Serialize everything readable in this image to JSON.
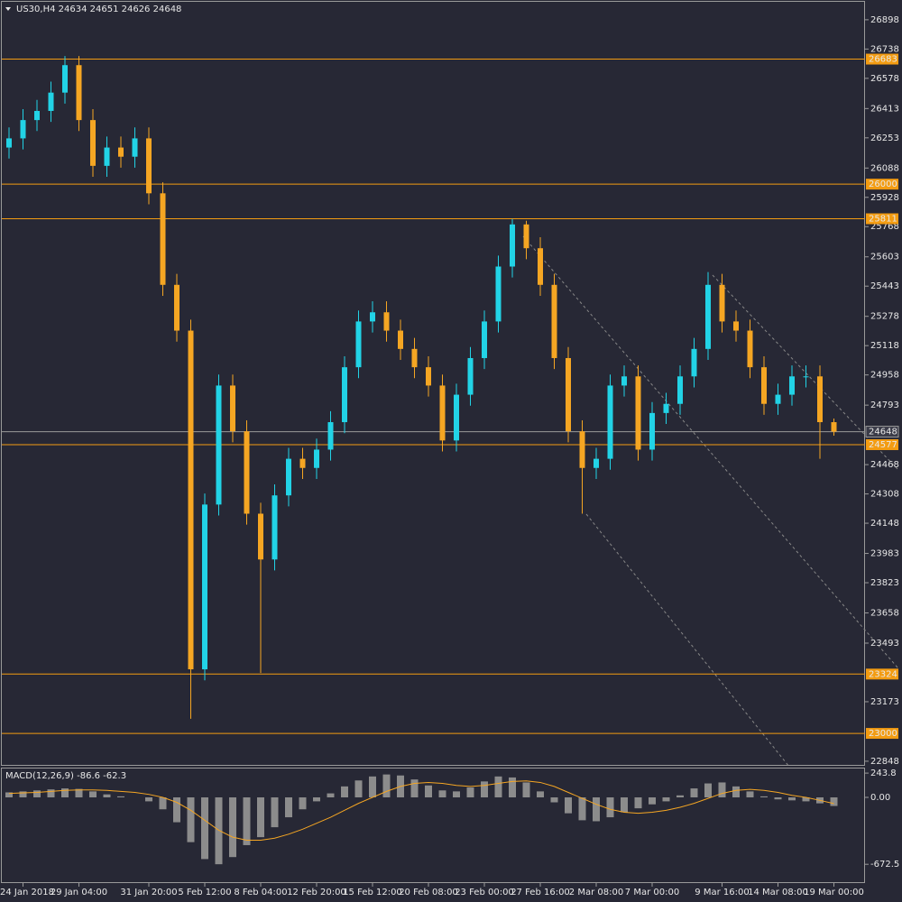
{
  "chart_data": [
    {
      "type": "candlestick",
      "title": "US30,H4  24634 24651 24626 24648",
      "categories": [
        null,
        "24 Jan 2018",
        null,
        null,
        null,
        "29 Jan 04:00",
        null,
        null,
        null,
        null,
        "31 Jan 20:00",
        null,
        null,
        null,
        "5 Feb 12:00",
        null,
        null,
        null,
        "8 Feb 04:00",
        null,
        null,
        null,
        "12 Feb 20:00",
        null,
        null,
        null,
        "15 Feb 12:00",
        null,
        null,
        null,
        "20 Feb 08:00",
        null,
        null,
        null,
        "23 Feb 00:00",
        null,
        null,
        null,
        "27 Feb 16:00",
        null,
        null,
        null,
        "2 Mar 08:00",
        null,
        null,
        null,
        "7 Mar 00:00",
        null,
        null,
        null,
        null,
        "9 Mar 16:00",
        null,
        null,
        null,
        "14 Mar 08:00",
        null,
        null,
        null,
        "19 Mar 00:00"
      ],
      "open": [
        26200,
        26250,
        26350,
        26400,
        26500,
        26650,
        26350,
        26100,
        26200,
        26150,
        26250,
        25950,
        25450,
        25200,
        23350,
        24250,
        24900,
        24650,
        24200,
        23950,
        24300,
        24500,
        24450,
        24550,
        24700,
        25000,
        25250,
        25300,
        25200,
        25100,
        25000,
        24900,
        24600,
        24850,
        25050,
        25250,
        25550,
        25780,
        25650,
        25450,
        25050,
        24650,
        24450,
        24500,
        24900,
        24950,
        24550,
        24750,
        24800,
        24950,
        25100,
        25450,
        25250,
        25200,
        25000,
        24800,
        24850,
        24950,
        24950,
        24700
      ],
      "high": [
        26310,
        26410,
        26460,
        26560,
        26700,
        26700,
        26410,
        26260,
        26260,
        26310,
        26310,
        26010,
        25510,
        25260,
        24310,
        24960,
        24960,
        24710,
        24260,
        24360,
        24560,
        24560,
        24610,
        24760,
        25060,
        25310,
        25360,
        25360,
        25260,
        25160,
        25060,
        24960,
        24910,
        25110,
        25310,
        25610,
        25810,
        25800,
        25710,
        25510,
        25110,
        24710,
        24560,
        24960,
        25010,
        25010,
        24810,
        24860,
        25010,
        25160,
        25520,
        25510,
        25310,
        25260,
        25060,
        24910,
        25010,
        25010,
        25010,
        24720
      ],
      "low": [
        26140,
        26190,
        26290,
        26340,
        26440,
        26290,
        26040,
        26040,
        26090,
        26090,
        25890,
        25390,
        25140,
        23080,
        23290,
        24190,
        24590,
        24140,
        23330,
        23890,
        24240,
        24390,
        24390,
        24490,
        24640,
        24940,
        25190,
        25140,
        25040,
        24940,
        24840,
        24540,
        24540,
        24790,
        24990,
        25190,
        25490,
        25590,
        25390,
        24990,
        24590,
        24200,
        24390,
        24440,
        24840,
        24490,
        24490,
        24690,
        24740,
        24890,
        25040,
        25190,
        25140,
        24940,
        24740,
        24740,
        24790,
        24890,
        24500,
        24626
      ],
      "close": [
        26250,
        26350,
        26400,
        26500,
        26650,
        26350,
        26100,
        26200,
        26150,
        26250,
        25950,
        25450,
        25200,
        23350,
        24250,
        24900,
        24650,
        24200,
        23950,
        24300,
        24500,
        24450,
        24550,
        24700,
        25000,
        25250,
        25300,
        25200,
        25100,
        25000,
        24900,
        24600,
        24850,
        25050,
        25250,
        25550,
        25780,
        25650,
        25450,
        25050,
        24650,
        24450,
        24500,
        24900,
        24950,
        24550,
        24750,
        24800,
        24950,
        25100,
        25450,
        25250,
        25200,
        25000,
        24800,
        24850,
        24950,
        24950,
        24700,
        24648
      ],
      "up_color": "#22d3e6",
      "down_color": "#f5a623",
      "ylim": [
        22823,
        26996
      ],
      "yticks": [
        26898,
        26738,
        26578,
        26413,
        26253,
        26088,
        25928,
        25768,
        25603,
        25443,
        25278,
        25118,
        24958,
        24793,
        24468,
        24308,
        24148,
        23983,
        23823,
        23658,
        23493,
        23173,
        22848
      ],
      "levels": [
        26683,
        26000,
        25811,
        24577,
        23324,
        23000
      ],
      "level_color": "#f39c12",
      "last_price": 24648
    },
    {
      "type": "macd",
      "title": "MACD(12,26,9) -86.6 -62.3",
      "histogram": [
        50,
        60,
        70,
        80,
        90,
        85,
        60,
        30,
        10,
        0,
        -40,
        -120,
        -250,
        -450,
        -620,
        -672,
        -600,
        -480,
        -400,
        -300,
        -200,
        -120,
        -40,
        40,
        110,
        170,
        210,
        230,
        220,
        180,
        120,
        70,
        60,
        100,
        160,
        210,
        200,
        150,
        60,
        -50,
        -160,
        -230,
        -240,
        -200,
        -150,
        -110,
        -70,
        -40,
        20,
        90,
        140,
        150,
        110,
        60,
        10,
        -20,
        -30,
        -40,
        -60,
        -86.6
      ],
      "signal": [
        40,
        45,
        50,
        60,
        70,
        75,
        75,
        70,
        60,
        50,
        30,
        0,
        -50,
        -130,
        -230,
        -330,
        -400,
        -430,
        -430,
        -410,
        -370,
        -320,
        -260,
        -200,
        -130,
        -60,
        0,
        60,
        110,
        140,
        150,
        140,
        120,
        110,
        120,
        140,
        160,
        165,
        150,
        110,
        50,
        -10,
        -70,
        -120,
        -150,
        -160,
        -150,
        -130,
        -100,
        -60,
        -10,
        40,
        70,
        80,
        70,
        50,
        20,
        0,
        -30,
        -62.3
      ],
      "hist_color": "#8c8c8c",
      "signal_color": "#f5a623",
      "ylim": [
        -852,
        290
      ],
      "yticks": [
        243.8,
        {
          "value": 0,
          "label": "0.00"
        },
        -672.5
      ]
    }
  ]
}
